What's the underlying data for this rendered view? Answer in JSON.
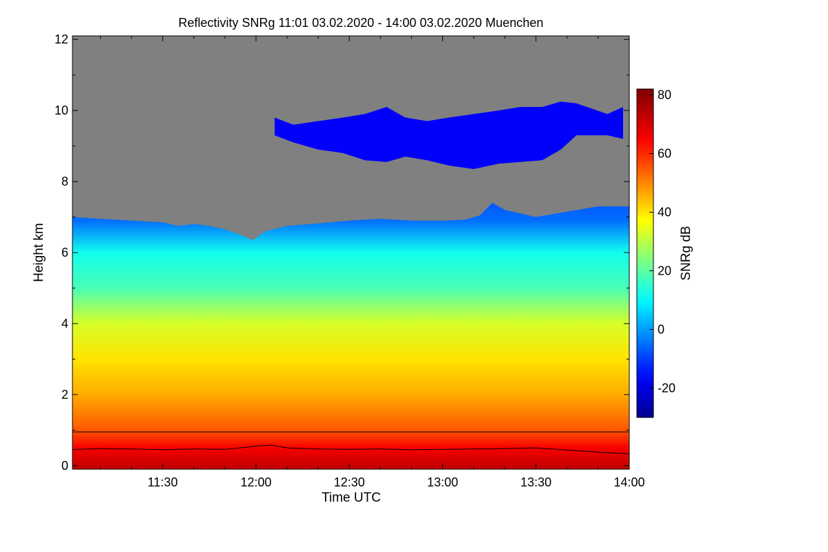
{
  "chart_data": {
    "type": "heatmap",
    "title": "Reflectivity SNRg   11:01 03.02.2020 - 14:00 03.02.2020 Muenchen",
    "xlabel": "Time UTC",
    "ylabel": "Height km",
    "xlim_minutes_utc": [
      661,
      840
    ],
    "ylim": [
      -0.1,
      12.1
    ],
    "x_ticks": [
      {
        "label": "11:30",
        "minute": 690
      },
      {
        "label": "12:00",
        "minute": 720
      },
      {
        "label": "12:30",
        "minute": 750
      },
      {
        "label": "13:00",
        "minute": 780
      },
      {
        "label": "13:30",
        "minute": 810
      },
      {
        "label": "14:00",
        "minute": 840
      }
    ],
    "y_ticks": [
      {
        "label": "0",
        "value": 0
      },
      {
        "label": "2",
        "value": 2
      },
      {
        "label": "4",
        "value": 4
      },
      {
        "label": "6",
        "value": 6
      },
      {
        "label": "8",
        "value": 8
      },
      {
        "label": "10",
        "value": 10
      },
      {
        "label": "12",
        "value": 12
      }
    ],
    "colorbar": {
      "label": "SNRg dB",
      "range": [
        -30,
        82
      ],
      "ticks": [
        {
          "label": "80",
          "value": 80
        },
        {
          "label": "60",
          "value": 60
        },
        {
          "label": "40",
          "value": 40
        },
        {
          "label": "20",
          "value": 20
        },
        {
          "label": "0",
          "value": 0
        },
        {
          "label": "-20",
          "value": -20
        }
      ]
    },
    "no_data_color": "#808080",
    "reference_line_height_km": 0.95,
    "boundary_layer_line_km": [
      [
        661,
        0.45
      ],
      [
        670,
        0.48
      ],
      [
        680,
        0.47
      ],
      [
        690,
        0.45
      ],
      [
        700,
        0.47
      ],
      [
        710,
        0.46
      ],
      [
        715,
        0.5
      ],
      [
        720,
        0.55
      ],
      [
        725,
        0.58
      ],
      [
        730,
        0.5
      ],
      [
        740,
        0.47
      ],
      [
        750,
        0.46
      ],
      [
        760,
        0.47
      ],
      [
        770,
        0.45
      ],
      [
        780,
        0.46
      ],
      [
        790,
        0.47
      ],
      [
        800,
        0.48
      ],
      [
        810,
        0.5
      ],
      [
        815,
        0.47
      ],
      [
        820,
        0.44
      ],
      [
        830,
        0.38
      ],
      [
        840,
        0.33
      ]
    ],
    "signal_top_km": [
      [
        661,
        7.0
      ],
      [
        670,
        6.95
      ],
      [
        680,
        6.9
      ],
      [
        690,
        6.85
      ],
      [
        695,
        6.75
      ],
      [
        700,
        6.8
      ],
      [
        705,
        6.75
      ],
      [
        710,
        6.65
      ],
      [
        715,
        6.5
      ],
      [
        719,
        6.35
      ],
      [
        723,
        6.6
      ],
      [
        730,
        6.75
      ],
      [
        740,
        6.82
      ],
      [
        750,
        6.9
      ],
      [
        760,
        6.95
      ],
      [
        770,
        6.9
      ],
      [
        780,
        6.9
      ],
      [
        787,
        6.92
      ],
      [
        792,
        7.05
      ],
      [
        796,
        7.4
      ],
      [
        800,
        7.2
      ],
      [
        810,
        7.0
      ],
      [
        820,
        7.15
      ],
      [
        830,
        7.3
      ],
      [
        840,
        7.3
      ]
    ],
    "upper_cloud_layer_km": [
      {
        "minute": 726,
        "bottom": 9.3,
        "top": 9.8
      },
      {
        "minute": 732,
        "bottom": 9.1,
        "top": 9.6
      },
      {
        "minute": 740,
        "bottom": 8.9,
        "top": 9.7
      },
      {
        "minute": 748,
        "bottom": 8.8,
        "top": 9.8
      },
      {
        "minute": 755,
        "bottom": 8.6,
        "top": 9.9
      },
      {
        "minute": 762,
        "bottom": 8.55,
        "top": 10.1
      },
      {
        "minute": 768,
        "bottom": 8.7,
        "top": 9.8
      },
      {
        "minute": 775,
        "bottom": 8.6,
        "top": 9.7
      },
      {
        "minute": 782,
        "bottom": 8.45,
        "top": 9.8
      },
      {
        "minute": 790,
        "bottom": 8.35,
        "top": 9.9
      },
      {
        "minute": 798,
        "bottom": 8.5,
        "top": 10.0
      },
      {
        "minute": 805,
        "bottom": 8.55,
        "top": 10.1
      },
      {
        "minute": 812,
        "bottom": 8.6,
        "top": 10.1
      },
      {
        "minute": 818,
        "bottom": 8.9,
        "top": 10.25
      },
      {
        "minute": 823,
        "bottom": 9.3,
        "top": 10.2
      },
      {
        "minute": 833,
        "bottom": 9.3,
        "top": 9.9
      },
      {
        "minute": 838,
        "bottom": 9.2,
        "top": 10.1
      }
    ],
    "snr_profile_db": [
      {
        "height_km": 0.0,
        "snr": 72
      },
      {
        "height_km": 0.5,
        "snr": 65
      },
      {
        "height_km": 1.0,
        "snr": 55
      },
      {
        "height_km": 2.0,
        "snr": 46
      },
      {
        "height_km": 3.0,
        "snr": 40
      },
      {
        "height_km": 4.0,
        "snr": 33
      },
      {
        "height_km": 5.0,
        "snr": 18
      },
      {
        "height_km": 6.0,
        "snr": 12
      },
      {
        "height_km": 6.9,
        "snr": -5
      },
      {
        "height_km": 9.5,
        "snr": -18
      }
    ]
  }
}
